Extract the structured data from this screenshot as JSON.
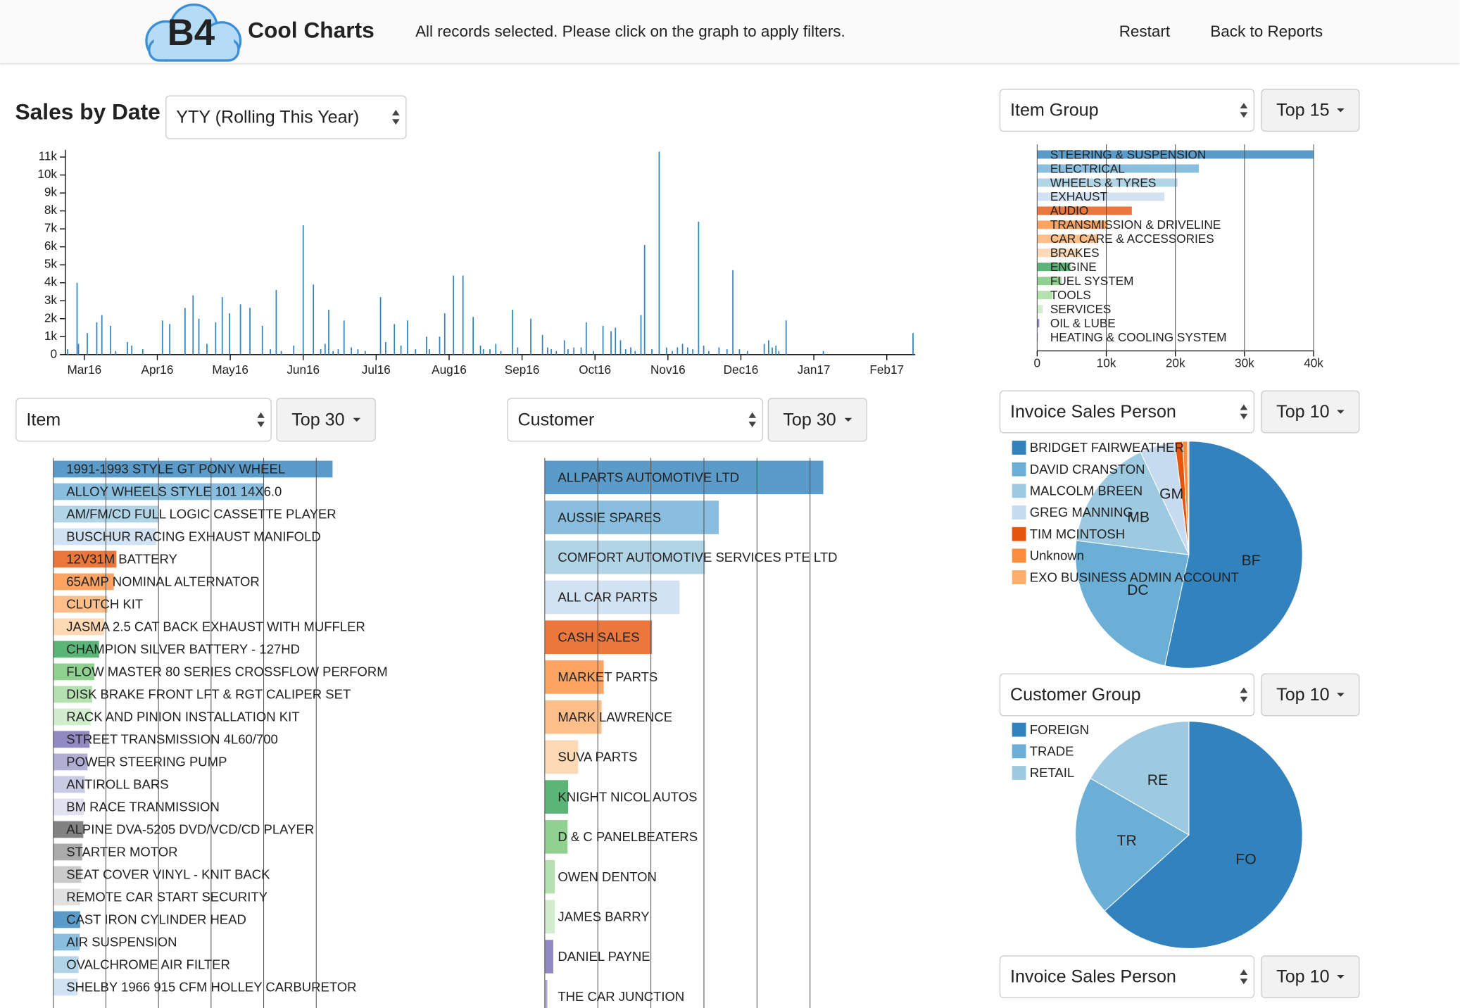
{
  "header": {
    "logo": "B4",
    "brand": "Cool Charts",
    "message": "All records selected. Please click on the graph to apply filters.",
    "nav": [
      "Restart",
      "Back to Reports"
    ]
  },
  "chart_data": [
    {
      "type": "bar",
      "title": "Sales by Date",
      "selector": "YTY (Rolling This Year)",
      "color": "#3182bd",
      "x": [
        -0.23,
        -0.1,
        -0.08,
        0.04,
        0.17,
        0.24,
        0.36,
        0.43,
        0.59,
        0.65,
        0.8,
        1.07,
        1.17,
        1.38,
        1.49,
        1.57,
        1.68,
        1.8,
        1.89,
        1.99,
        2.14,
        2.27,
        2.44,
        2.55,
        2.63,
        2.7,
        2.87,
        3.0,
        3.14,
        3.24,
        3.3,
        3.35,
        3.41,
        3.48,
        3.56,
        3.66,
        3.75,
        3.85,
        4.06,
        4.13,
        4.25,
        4.34,
        4.43,
        4.54,
        4.69,
        4.73,
        4.87,
        4.94,
        5.06,
        5.19,
        5.33,
        5.43,
        5.47,
        5.56,
        5.64,
        5.71,
        5.87,
        5.94,
        6.12,
        6.28,
        6.35,
        6.4,
        6.47,
        6.58,
        6.63,
        6.71,
        6.81,
        6.88,
        6.98,
        7.11,
        7.22,
        7.28,
        7.35,
        7.42,
        7.49,
        7.55,
        7.63,
        7.68,
        7.78,
        7.88,
        7.98,
        8.06,
        8.13,
        8.2,
        8.27,
        8.34,
        8.42,
        8.49,
        8.56,
        8.7,
        8.81,
        8.89,
        8.98,
        9.09,
        9.32,
        9.38,
        9.43,
        9.48,
        9.52,
        9.62,
        10.13,
        11.36
      ],
      "values": [
        300,
        4000,
        600,
        1200,
        1800,
        2200,
        1600,
        200,
        700,
        500,
        300,
        1900,
        1700,
        2600,
        3300,
        2000,
        600,
        1800,
        3200,
        2300,
        2800,
        2600,
        1600,
        300,
        3600,
        200,
        500,
        7200,
        3900,
        300,
        600,
        2500,
        200,
        300,
        1900,
        400,
        300,
        200,
        3200,
        700,
        1700,
        500,
        1900,
        300,
        1000,
        300,
        1000,
        2300,
        4400,
        4400,
        2100,
        500,
        300,
        300,
        600,
        200,
        2500,
        400,
        2000,
        1100,
        400,
        300,
        200,
        800,
        300,
        400,
        400,
        1800,
        200,
        1600,
        1300,
        1500,
        800,
        300,
        400,
        200,
        2200,
        6100,
        300,
        11300,
        400,
        200,
        400,
        600,
        400,
        300,
        7400,
        500,
        200,
        400,
        300,
        4700,
        300,
        200,
        600,
        800,
        400,
        500,
        200,
        1900,
        200,
        1200
      ],
      "xlim": [
        -0.26,
        11.39
      ],
      "xticks": [
        {
          "value": 0,
          "label": "Mar16"
        },
        {
          "value": 1,
          "label": "Apr16"
        },
        {
          "value": 2,
          "label": "May16"
        },
        {
          "value": 3,
          "label": "Jun16"
        },
        {
          "value": 4,
          "label": "Jul16"
        },
        {
          "value": 5,
          "label": "Aug16"
        },
        {
          "value": 6,
          "label": "Sep16"
        },
        {
          "value": 7,
          "label": "Oct16"
        },
        {
          "value": 8,
          "label": "Nov16"
        },
        {
          "value": 9,
          "label": "Dec16"
        },
        {
          "value": 10,
          "label": "Jan17"
        },
        {
          "value": 11,
          "label": "Feb17"
        }
      ],
      "ylim": [
        0,
        11400
      ],
      "yticks": [
        0,
        {
          "value": 1000,
          "label": "1k"
        },
        {
          "value": 2000,
          "label": "2k"
        },
        {
          "value": 3000,
          "label": "3k"
        },
        {
          "value": 4000,
          "label": "4k"
        },
        {
          "value": 5000,
          "label": "5k"
        },
        {
          "value": 6000,
          "label": "6k"
        },
        {
          "value": 7000,
          "label": "7k"
        },
        {
          "value": 8000,
          "label": "8k"
        },
        {
          "value": 9000,
          "label": "9k"
        },
        {
          "value": 10000,
          "label": "10k"
        },
        {
          "value": 11000,
          "label": "11k"
        }
      ]
    },
    {
      "type": "bar",
      "orientation": "horizontal",
      "selector": "Item Group",
      "top": "Top 15",
      "categories": [
        "STEERING & SUSPENSION",
        "ELECTRICAL",
        "WHEELS & TYRES",
        "EXHAUST",
        "AUDIO",
        "TRANSMISSION & DRIVELINE",
        "CAR CARE & ACCESSORIES",
        "BRAKES",
        "ENGINE",
        "FUEL SYSTEM",
        "TOOLS",
        "SERVICES",
        "OIL & LUBE",
        "HEATING & COOLING SYSTEM"
      ],
      "values": [
        40000,
        23400,
        20300,
        18400,
        13700,
        10200,
        8900,
        6200,
        4800,
        3500,
        2200,
        800,
        300,
        100
      ],
      "xlim": [
        0,
        40000
      ],
      "xticks": [
        0,
        {
          "value": 10000,
          "label": "10k"
        },
        {
          "value": 20000,
          "label": "20k"
        },
        {
          "value": 30000,
          "label": "30k"
        },
        {
          "value": 40000,
          "label": "40k"
        }
      ],
      "palette": [
        "#3182bd",
        "#6baed6",
        "#9ecae1",
        "#c6dbef",
        "#e6550d",
        "#fd8d3c",
        "#fdae6b",
        "#fdd0a2",
        "#31a354",
        "#74c476",
        "#a1d99b",
        "#c7e9c0",
        "#756bb1",
        "#9e9ac8",
        "#bcbddc",
        "#dadaeb",
        "#636363",
        "#969696",
        "#bdbdbd",
        "#d9d9d9"
      ]
    },
    {
      "type": "bar",
      "orientation": "horizontal",
      "selector": "Item",
      "top": "Top 30",
      "categories": [
        "1991-1993 STYLE GT PONY WHEEL",
        "ALLOY WHEELS STYLE 101 14X6.0",
        "AM/FM/CD FULL LOGIC CASSETTE PLAYER",
        "BUSCHUR RACING EXHAUST MANIFOLD",
        "12V31M BATTERY",
        "65AMP NOMINAL ALTERNATOR",
        "CLUTCH KIT",
        "JASMA 2.5 CAT BACK EXHAUST WITH MUFFLER",
        "CHAMPION SILVER BATTERY - 127HD",
        "FLOW MASTER 80 SERIES CROSSFLOW PERFORM",
        "DISK BRAKE FRONT LFT & RGT CALIPER SET",
        "RACK AND PINION INSTALLATION KIT",
        "STREET TRANSMISSION 4L60/700",
        "POWER STEERING PUMP",
        "ANTIROLL BARS",
        "BM RACE TRANMISSION",
        "ALPINE DVA-5205 DVD/VCD/CD PLAYER",
        "STARTER MOTOR",
        "SEAT COVER VINYL - KNIT BACK",
        "REMOTE CAR START SECURITY",
        "CAST IRON CYLINDER HEAD",
        "AIR SUSPENSION",
        "OVALCHROME AIR FILTER",
        "SHELBY 1966 915 CFM HOLLEY CARBURETOR"
      ],
      "values": [
        5.31,
        4.0,
        2.0,
        1.96,
        1.2,
        1.15,
        1.03,
        0.97,
        0.87,
        0.78,
        0.74,
        0.71,
        0.69,
        0.65,
        0.6,
        0.58,
        0.57,
        0.55,
        0.53,
        0.51,
        0.51,
        0.5,
        0.48,
        0.46
      ],
      "xlim": [
        0,
        6
      ],
      "xticks": [
        0,
        1,
        2,
        3,
        4,
        5
      ],
      "palette": [
        "#3182bd",
        "#6baed6",
        "#9ecae1",
        "#c6dbef",
        "#e6550d",
        "#fd8d3c",
        "#fdae6b",
        "#fdd0a2",
        "#31a354",
        "#74c476",
        "#a1d99b",
        "#c7e9c0",
        "#756bb1",
        "#9e9ac8",
        "#bcbddc",
        "#dadaeb",
        "#636363",
        "#969696",
        "#bdbdbd",
        "#d9d9d9"
      ]
    },
    {
      "type": "bar",
      "orientation": "horizontal",
      "selector": "Customer",
      "top": "Top 30",
      "categories": [
        "ALLPARTS AUTOMOTIVE LTD",
        "AUSSIE SPARES",
        "COMFORT AUTOMOTIVE SERVICES PTE LTD",
        "ALL CAR PARTS",
        "CASH SALES",
        "MARKET PARTS",
        "MARK LAWRENCE",
        "SUVA PARTS",
        "KNIGHT NICOL AUTOS",
        "D & C PANELBEATERS",
        "OWEN DENTON",
        "JAMES BARRY",
        "DANIEL PAYNE",
        "THE CAR JUNCTION"
      ],
      "values": [
        5.25,
        3.28,
        3.02,
        2.54,
        2.02,
        1.11,
        1.07,
        0.63,
        0.44,
        0.43,
        0.19,
        0.19,
        0.16,
        0.05
      ],
      "xlim": [
        0,
        6
      ],
      "xticks": [
        0,
        1,
        2,
        3,
        4,
        5
      ],
      "palette": [
        "#3182bd",
        "#6baed6",
        "#9ecae1",
        "#c6dbef",
        "#e6550d",
        "#fd8d3c",
        "#fdae6b",
        "#fdd0a2",
        "#31a354",
        "#74c476",
        "#a1d99b",
        "#c7e9c0",
        "#756bb1",
        "#9e9ac8",
        "#bcbddc",
        "#dadaeb",
        "#636363",
        "#969696",
        "#bdbdbd",
        "#d9d9d9"
      ]
    },
    {
      "type": "pie",
      "selector": "Invoice Sales Person",
      "top": "Top 10",
      "categories": [
        "BRIDGET FAIRWEATHER",
        "DAVID CRANSTON",
        "MALCOLM BREEN",
        "GREG MANNING",
        "TIM MCINTOSH",
        "Unknown",
        "EXO BUSINESS ADMIN ACCOUNT"
      ],
      "values": [
        53.4,
        23.6,
        16,
        5,
        1.1,
        0.7,
        0.2
      ],
      "slice_labels": [
        "BF",
        "DC",
        "MB",
        "GM",
        null,
        null,
        null
      ],
      "colors": [
        "#3182bd",
        "#6baed6",
        "#9ecae1",
        "#c6dbef",
        "#e6550d",
        "#fd8d3c",
        "#fdae6b"
      ]
    },
    {
      "type": "pie",
      "selector": "Customer Group",
      "top": "Top 10",
      "categories": [
        "FOREIGN",
        "TRADE",
        "RETAIL"
      ],
      "values": [
        63.3,
        20,
        16.7
      ],
      "slice_labels": [
        "FO",
        "TR",
        "RE"
      ],
      "colors": [
        "#3182bd",
        "#6baed6",
        "#9ecae1"
      ]
    }
  ],
  "panel": {
    "selector": "Invoice Sales Person",
    "top": "Top 10"
  }
}
